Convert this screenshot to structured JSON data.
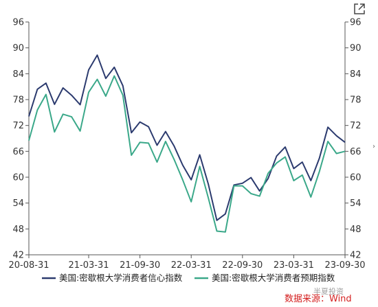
{
  "chart_data": {
    "type": "line",
    "x": [
      "20-08",
      "20-09",
      "20-10",
      "20-11",
      "20-12",
      "21-01",
      "21-02",
      "21-03",
      "21-04",
      "21-05",
      "21-06",
      "21-07",
      "21-08",
      "21-09",
      "21-10",
      "21-11",
      "21-12",
      "22-01",
      "22-02",
      "22-03",
      "22-04",
      "22-05",
      "22-06",
      "22-07",
      "22-08",
      "22-09",
      "22-10",
      "22-11",
      "22-12",
      "23-01",
      "23-02",
      "23-03",
      "23-04",
      "23-05",
      "23-06",
      "23-07",
      "23-08",
      "23-09"
    ],
    "x_tick_labels": [
      "20-08-31",
      "21-03-31",
      "21-09-30",
      "22-03-31",
      "22-09-30",
      "23-03-31",
      "23-09-30"
    ],
    "x_tick_values": [
      "20-08",
      "21-03",
      "21-09",
      "22-03",
      "22-09",
      "23-03",
      "23-09"
    ],
    "series": [
      {
        "name": "美国:密歇根大学消费者信心指数",
        "color": "#2b3a6e",
        "values": [
          74.1,
          80.4,
          81.8,
          76.9,
          80.7,
          79.0,
          76.8,
          84.9,
          88.3,
          82.9,
          85.5,
          81.2,
          70.3,
          72.8,
          71.7,
          67.4,
          70.6,
          67.2,
          62.8,
          59.4,
          65.2,
          58.4,
          50.0,
          51.5,
          58.2,
          58.6,
          59.9,
          56.8,
          59.7,
          64.9,
          67.0,
          62.0,
          63.5,
          59.2,
          64.4,
          71.6,
          69.6,
          68.1
        ]
      },
      {
        "name": "美国:密歇根大学消费者预期指数",
        "color": "#3aa889",
        "values": [
          68.5,
          75.6,
          79.2,
          70.5,
          74.6,
          74.0,
          70.7,
          79.7,
          82.7,
          78.8,
          83.5,
          79.0,
          65.1,
          68.1,
          67.9,
          63.5,
          68.3,
          64.1,
          59.4,
          54.3,
          62.5,
          55.2,
          47.5,
          47.3,
          58.0,
          58.0,
          56.2,
          55.6,
          60.9,
          63.3,
          64.7,
          59.2,
          60.5,
          55.4,
          61.3,
          68.3,
          65.5,
          66.0
        ]
      }
    ],
    "ylim": [
      42,
      96
    ],
    "y_ticks": [
      42,
      48,
      54,
      60,
      66,
      72,
      78,
      84,
      90,
      96
    ],
    "legend_position": "bottom",
    "grid": false
  },
  "source_label": "数据来源：Wind",
  "watermark_label": "半夏投资",
  "icons": {
    "expand": "expand-icon",
    "arrow": "chevron-right-icon"
  }
}
